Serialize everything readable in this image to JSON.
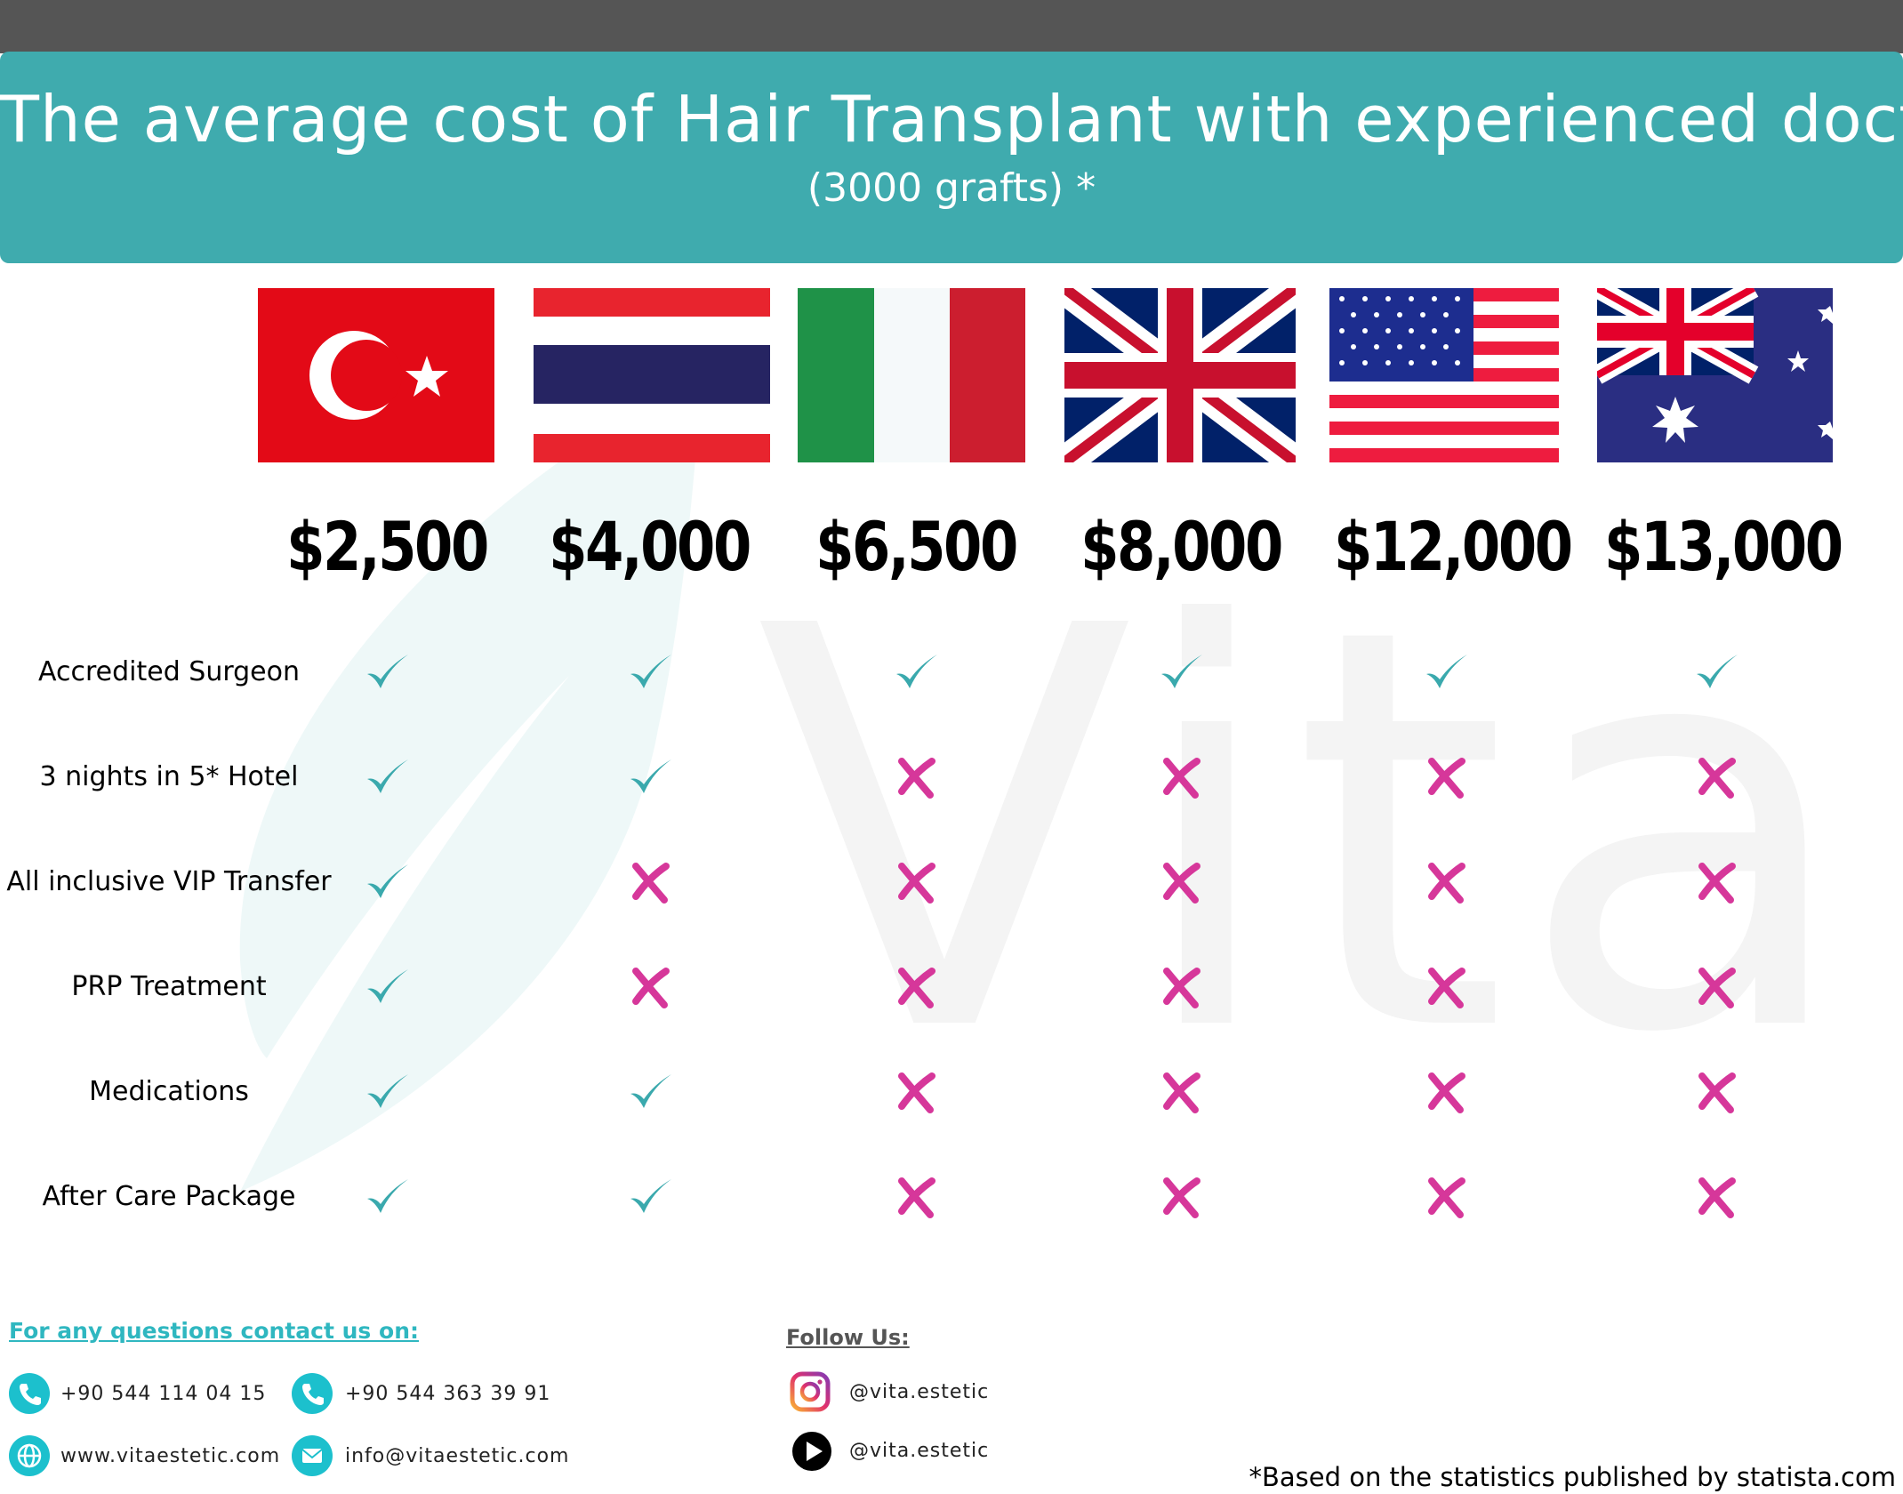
{
  "header": {
    "title": "The average cost of Hair Transplant with experienced doctor",
    "subtitle": "(3000 grafts) *"
  },
  "watermark": {
    "text": "Vita"
  },
  "colors": {
    "banner": "#3fabae",
    "check": "#3aa9ad",
    "cross": "#d6379a",
    "contact_heading": "#2fb7c0",
    "contact_icon": "#1cc0cd"
  },
  "countries": [
    {
      "flag": "turkey-flag",
      "price": "$2,500"
    },
    {
      "flag": "thailand-flag",
      "price": "$4,000"
    },
    {
      "flag": "italy-flag",
      "price": "$6,500"
    },
    {
      "flag": "uk-flag",
      "price": "$8,000"
    },
    {
      "flag": "usa-flag",
      "price": "$12,000"
    },
    {
      "flag": "australia-flag",
      "price": "$13,000"
    }
  ],
  "features": [
    {
      "label": "Accredited Surgeon",
      "included": [
        true,
        true,
        true,
        true,
        true,
        true
      ]
    },
    {
      "label": "3 nights in 5* Hotel",
      "included": [
        true,
        true,
        false,
        false,
        false,
        false
      ]
    },
    {
      "label": "All inclusive VIP Transfer",
      "included": [
        true,
        false,
        false,
        false,
        false,
        false
      ]
    },
    {
      "label": "PRP Treatment",
      "included": [
        true,
        false,
        false,
        false,
        false,
        false
      ]
    },
    {
      "label": "Medications",
      "included": [
        true,
        true,
        false,
        false,
        false,
        false
      ]
    },
    {
      "label": "After Care Package",
      "included": [
        true,
        true,
        false,
        false,
        false,
        false
      ]
    }
  ],
  "contact": {
    "heading": "For any questions contact us on:",
    "phone1": "+90 544 114 04 15",
    "phone2": "+90 544 363 39 91",
    "website": "www.vitaestetic.com",
    "email": "info@vitaestetic.com"
  },
  "social": {
    "heading": "Follow Us:",
    "instagram": "@vita.estetic",
    "youtube": "@vita.estetic"
  },
  "footnote": "*Based on the statistics published by statista.com"
}
